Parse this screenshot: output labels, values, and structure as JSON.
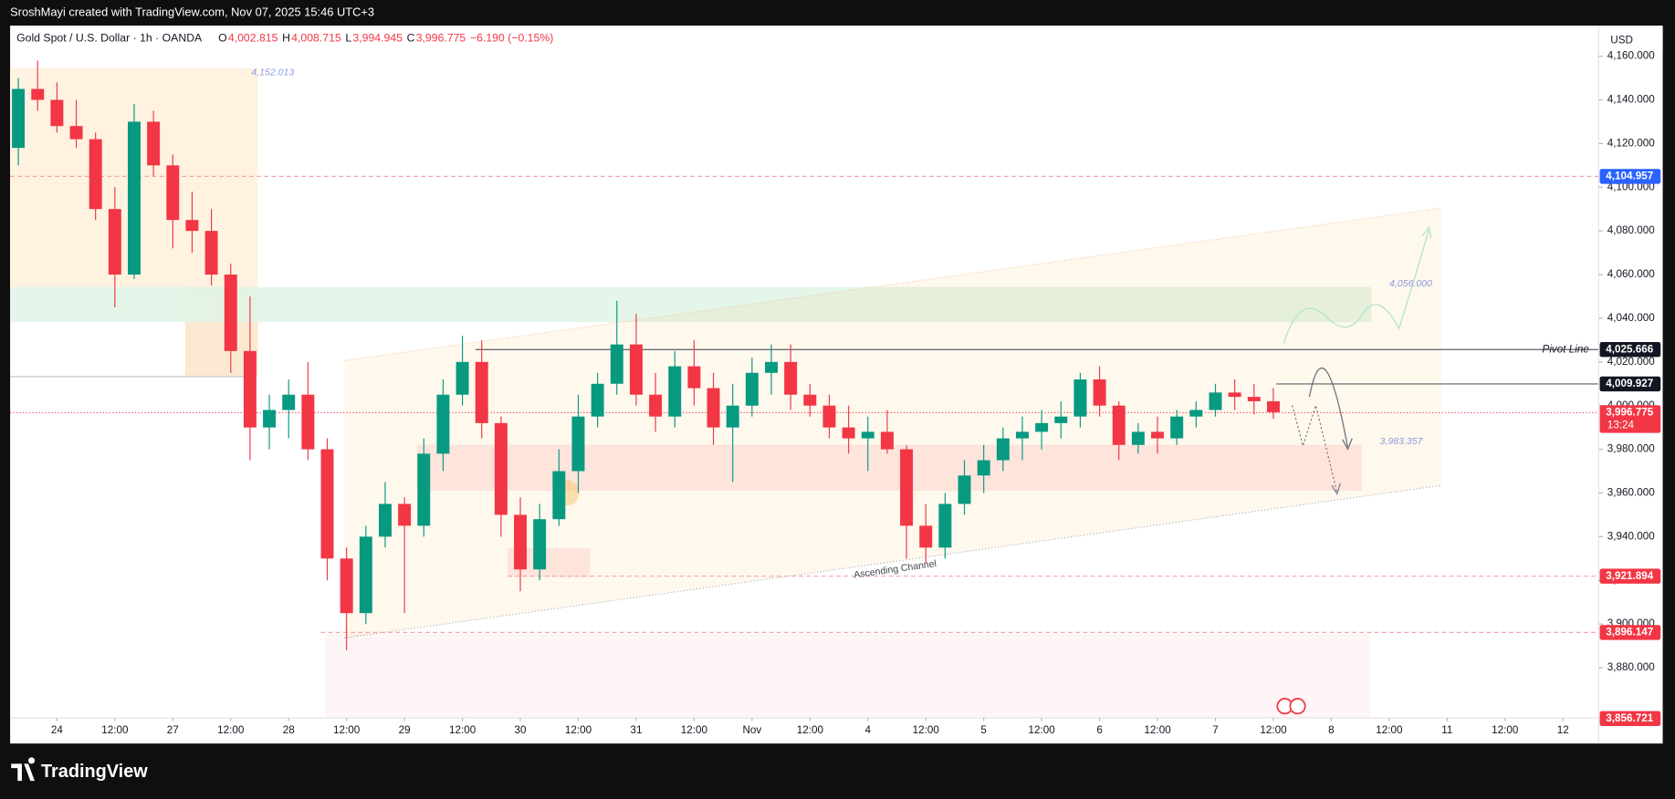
{
  "chart_data": {
    "type": "candlestick",
    "header": "SroshMayi created with TradingView.com, Nov 07, 2025 15:46 UTC+3",
    "title": "Gold Spot / U.S. Dollar · 1h · OANDA",
    "ohlc_legend": [
      {
        "key": "O",
        "value": "4,002.815"
      },
      {
        "key": "H",
        "value": "4,008.715"
      },
      {
        "key": "L",
        "value": "3,994.945"
      },
      {
        "key": "C",
        "value": "3,996.775"
      }
    ],
    "change": "−6.190 (−0.15%)",
    "currency": "USD",
    "brand": "TradingView",
    "up_color": "#089981",
    "down_color": "#f23645",
    "grid": false,
    "x": [
      -8,
      -4,
      0,
      4,
      8,
      12,
      16,
      20,
      24,
      28,
      32,
      36,
      40,
      44,
      48,
      52,
      56,
      60,
      64,
      68,
      72,
      76,
      80,
      84,
      88,
      92,
      96,
      100,
      104,
      108,
      112,
      116,
      120,
      124,
      128,
      132,
      136,
      140,
      144,
      148,
      152,
      156,
      160,
      164,
      168,
      172,
      176,
      180,
      184,
      188,
      192,
      196,
      200,
      204,
      208,
      212,
      216,
      220,
      224,
      228,
      232,
      236,
      240,
      244,
      248,
      252
    ],
    "open": [
      4118,
      4145,
      4140,
      4128,
      4122,
      4090,
      4060,
      4130,
      4110,
      4085,
      4080,
      4060,
      4025,
      3990,
      3998,
      4005,
      3980,
      3930,
      3905,
      3940,
      3955,
      3945,
      3978,
      4005,
      4020,
      3992,
      3950,
      3925,
      3948,
      3970,
      3995,
      4010,
      4028,
      4005,
      3995,
      4018,
      4008,
      3990,
      4000,
      4015,
      4020,
      4005,
      4000,
      3990,
      3985,
      3988,
      3980,
      3945,
      3935,
      3955,
      3968,
      3975,
      3985,
      3988,
      3992,
      3995,
      4012,
      4000,
      3982,
      3988,
      3985,
      3995,
      3998,
      4006,
      4004,
      4002
    ],
    "high": [
      4150,
      4158,
      4148,
      4140,
      4125,
      4100,
      4138,
      4135,
      4115,
      4098,
      4090,
      4065,
      4050,
      4005,
      4012,
      4020,
      3985,
      3935,
      3945,
      3965,
      3958,
      3985,
      4012,
      4032,
      4030,
      3995,
      3958,
      3955,
      3980,
      4005,
      4015,
      4048,
      4042,
      4015,
      4025,
      4030,
      4015,
      4010,
      4022,
      4028,
      4028,
      4010,
      4005,
      4000,
      3995,
      3998,
      3982,
      3955,
      3960,
      3975,
      3982,
      3990,
      3995,
      3998,
      4002,
      4015,
      4018,
      4002,
      3992,
      3995,
      3998,
      4002,
      4010,
      4012,
      4010,
      4008
    ],
    "low": [
      4110,
      4135,
      4125,
      4118,
      4085,
      4045,
      4058,
      4105,
      4072,
      4070,
      4055,
      4015,
      3975,
      3980,
      3985,
      3975,
      3920,
      3888,
      3900,
      3935,
      3905,
      3940,
      3970,
      4000,
      3985,
      3940,
      3915,
      3920,
      3945,
      3960,
      3990,
      4005,
      4000,
      3988,
      3990,
      4000,
      3982,
      3965,
      3995,
      4005,
      3998,
      3995,
      3985,
      3978,
      3970,
      3978,
      3930,
      3928,
      3930,
      3950,
      3960,
      3970,
      3975,
      3980,
      3985,
      3990,
      3995,
      3975,
      3978,
      3978,
      3982,
      3990,
      3995,
      3998,
      3996,
      3994
    ],
    "close": [
      4145,
      4140,
      4128,
      4122,
      4090,
      4060,
      4130,
      4110,
      4085,
      4080,
      4060,
      4025,
      3990,
      3998,
      4005,
      3980,
      3930,
      3905,
      3940,
      3955,
      3945,
      3978,
      4005,
      4020,
      3992,
      3950,
      3925,
      3948,
      3970,
      3995,
      4010,
      4028,
      4005,
      3995,
      4018,
      4008,
      3990,
      4000,
      4015,
      4020,
      4005,
      4000,
      3990,
      3985,
      3988,
      3980,
      3945,
      3935,
      3955,
      3968,
      3975,
      3985,
      3988,
      3992,
      3995,
      4012,
      4000,
      3982,
      3988,
      3985,
      3995,
      3998,
      4006,
      4004,
      4002,
      3997
    ],
    "xlim": [
      -9.7,
      319.4
    ],
    "ylim": [
      3857,
      4174
    ],
    "xticks": [
      {
        "value": 0,
        "label": "24"
      },
      {
        "value": 12,
        "label": "12:00"
      },
      {
        "value": 24,
        "label": "27"
      },
      {
        "value": 36,
        "label": "12:00"
      },
      {
        "value": 48,
        "label": "28"
      },
      {
        "value": 60,
        "label": "12:00"
      },
      {
        "value": 72,
        "label": "29"
      },
      {
        "value": 84,
        "label": "12:00"
      },
      {
        "value": 96,
        "label": "30"
      },
      {
        "value": 108,
        "label": "12:00"
      },
      {
        "value": 120,
        "label": "31"
      },
      {
        "value": 132,
        "label": "12:00"
      },
      {
        "value": 144,
        "label": "Nov"
      },
      {
        "value": 156,
        "label": "12:00"
      },
      {
        "value": 168,
        "label": "4"
      },
      {
        "value": 180,
        "label": "12:00"
      },
      {
        "value": 192,
        "label": "5"
      },
      {
        "value": 204,
        "label": "12:00"
      },
      {
        "value": 216,
        "label": "6"
      },
      {
        "value": 228,
        "label": "12:00"
      },
      {
        "value": 240,
        "label": "7"
      },
      {
        "value": 252,
        "label": "12:00"
      },
      {
        "value": 264,
        "label": "8"
      },
      {
        "value": 276,
        "label": "12:00"
      },
      {
        "value": 288,
        "label": "11"
      },
      {
        "value": 300,
        "label": "12:00"
      },
      {
        "value": 312,
        "label": "12"
      }
    ],
    "yticks": [
      {
        "value": 4160,
        "label": "4,160.000"
      },
      {
        "value": 4140,
        "label": "4,140.000"
      },
      {
        "value": 4120,
        "label": "4,120.000"
      },
      {
        "value": 4100,
        "label": "4,100.000"
      },
      {
        "value": 4080,
        "label": "4,080.000"
      },
      {
        "value": 4060,
        "label": "4,060.000"
      },
      {
        "value": 4040,
        "label": "4,040.000"
      },
      {
        "value": 4020,
        "label": "4,020.000"
      },
      {
        "value": 4000,
        "label": "4,000.000"
      },
      {
        "value": 3980,
        "label": "3,980.000"
      },
      {
        "value": 3960,
        "label": "3,960.000"
      },
      {
        "value": 3940,
        "label": "3,940.000"
      },
      {
        "value": 3920,
        "label": "3,920.000"
      },
      {
        "value": 3900,
        "label": "3,900.000"
      },
      {
        "value": 3880,
        "label": "3,880.000"
      }
    ],
    "price_labels": [
      {
        "value": 4104.957,
        "label": "4,104.957",
        "color": "#2962ff"
      },
      {
        "value": 4025.666,
        "label": "4,025.666",
        "color": "#131722"
      },
      {
        "value": 4009.927,
        "label": "4,009.927",
        "color": "#131722"
      },
      {
        "value": 3996.775,
        "label": "3,996.775",
        "color": "#f23645",
        "countdown": "13:24"
      },
      {
        "value": 3921.894,
        "label": "3,921.894",
        "color": "#f23645"
      },
      {
        "value": 3896.147,
        "label": "3,896.147",
        "color": "#f23645"
      },
      {
        "value": 3856.721,
        "label": "3,856.721",
        "color": "#f23645"
      }
    ],
    "annotations": [
      "4,152.013",
      "4,056.000",
      "3,983.357",
      "Pivot Line",
      "Ascending Channel"
    ]
  }
}
